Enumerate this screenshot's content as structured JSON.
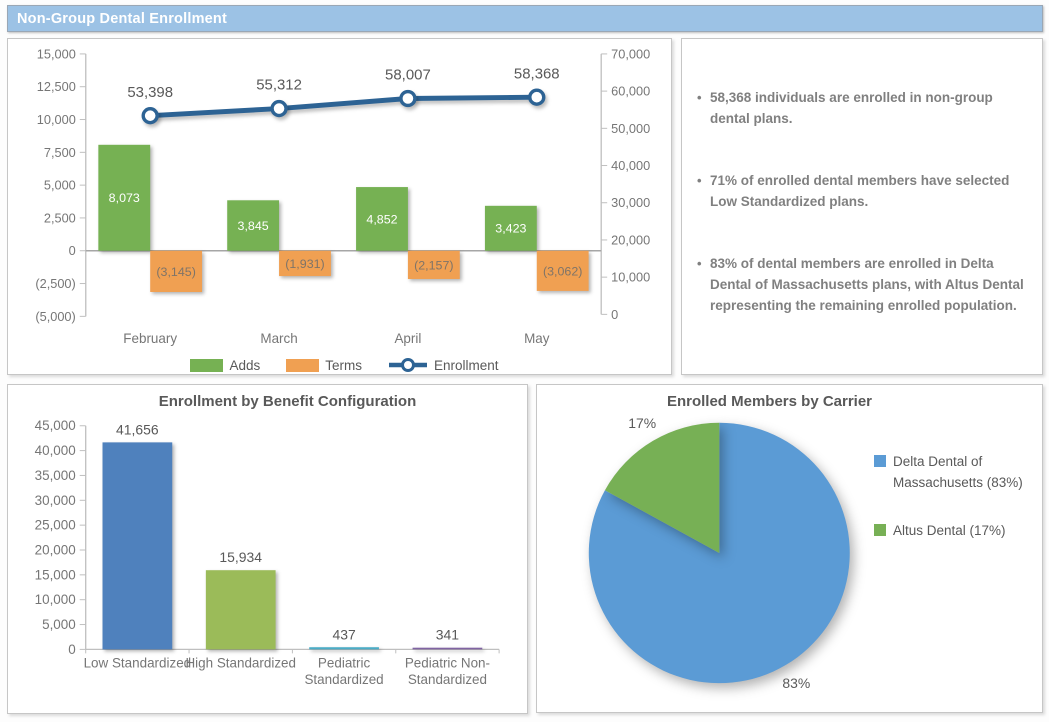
{
  "header": {
    "title": "Non-Group Dental Enrollment"
  },
  "palette": {
    "header_bg": "#9CC2E5",
    "header_text": "#FFFFFF",
    "panel_border": "#C6C6C6",
    "axis_line": "#BFBFBF",
    "zero_line": "#A6A6A6",
    "axis_text": "#767676",
    "title_text": "#595959",
    "bullet_text": "#808080"
  },
  "insights": {
    "bullets": [
      "58,368 individuals are enrolled in non-group dental plans.",
      "71% of enrolled dental members have selected Low Standardized plans.",
      "83% of dental members are enrolled in Delta Dental of Massachusetts plans, with Altus Dental representing the remaining enrolled population."
    ]
  },
  "chart_data": [
    {
      "id": "enrollment-trend",
      "type": "combo",
      "categories": [
        "February",
        "March",
        "April",
        "May"
      ],
      "series": [
        {
          "name": "Adds",
          "chart": "bar",
          "axis": "left",
          "color": "#76B153",
          "values": [
            8073,
            3845,
            4852,
            3423
          ],
          "labels": [
            "8,073",
            "3,845",
            "4,852",
            "3,423"
          ],
          "label_color": "#FFFFFF"
        },
        {
          "name": "Terms",
          "chart": "bar",
          "axis": "left",
          "color": "#F0A052",
          "values": [
            -3145,
            -1931,
            -2157,
            -3062
          ],
          "labels": [
            "(3,145)",
            "(1,931)",
            "(2,157)",
            "(3,062)"
          ],
          "label_color": "#7F7468"
        },
        {
          "name": "Enrollment",
          "chart": "line",
          "axis": "right",
          "color": "#2D6394",
          "values": [
            53398,
            55312,
            58007,
            58368
          ],
          "labels": [
            "53,398",
            "55,312",
            "58,007",
            "58,368"
          ],
          "label_color": "#595959"
        }
      ],
      "left_axis": {
        "min": -5000,
        "max": 15000,
        "step": 2500,
        "ticks": [
          "15,000",
          "12,500",
          "10,000",
          "7,500",
          "5,000",
          "2,500",
          "0",
          "(2,500)",
          "(5,000)"
        ]
      },
      "right_axis": {
        "min": 0,
        "max": 70000,
        "step": 10000,
        "ticks": [
          "70,000",
          "60,000",
          "50,000",
          "40,000",
          "30,000",
          "20,000",
          "10,000",
          "0"
        ]
      },
      "grid": false,
      "legend_position": "bottom"
    },
    {
      "id": "benefit-configuration",
      "type": "bar",
      "title": "Enrollment by Benefit Configuration",
      "categories": [
        "Low Standardized",
        "High Standardized",
        "Pediatric Standardized",
        "Pediatric Non-Standardized"
      ],
      "categories_wrapped": [
        [
          "Low Standardized"
        ],
        [
          "High Standardized"
        ],
        [
          "Pediatric",
          "Standardized"
        ],
        [
          "Pediatric Non-",
          "Standardized"
        ]
      ],
      "values": [
        41656,
        15934,
        437,
        341
      ],
      "labels": [
        "41,656",
        "15,934",
        "437",
        "341"
      ],
      "colors": [
        "#4F81BD",
        "#9BBB59",
        "#4BACC6",
        "#8064A2"
      ],
      "ylim": [
        0,
        45000
      ],
      "ytick_step": 5000,
      "yticks": [
        "45,000",
        "40,000",
        "35,000",
        "30,000",
        "25,000",
        "20,000",
        "15,000",
        "10,000",
        "5,000",
        "0"
      ],
      "grid": false,
      "legend_position": "none"
    },
    {
      "id": "carrier-mix",
      "type": "pie",
      "title": "Enrolled Members by Carrier",
      "slices": [
        {
          "label": "Delta Dental of Massachusetts (83%)",
          "value": 83,
          "data_label": "83%",
          "color": "#5B9BD5"
        },
        {
          "label": "Altus Dental (17%)",
          "value": 17,
          "data_label": "17%",
          "color": "#77B055"
        }
      ],
      "start_angle_deg": 0,
      "direction": "clockwise",
      "legend_position": "right"
    }
  ]
}
